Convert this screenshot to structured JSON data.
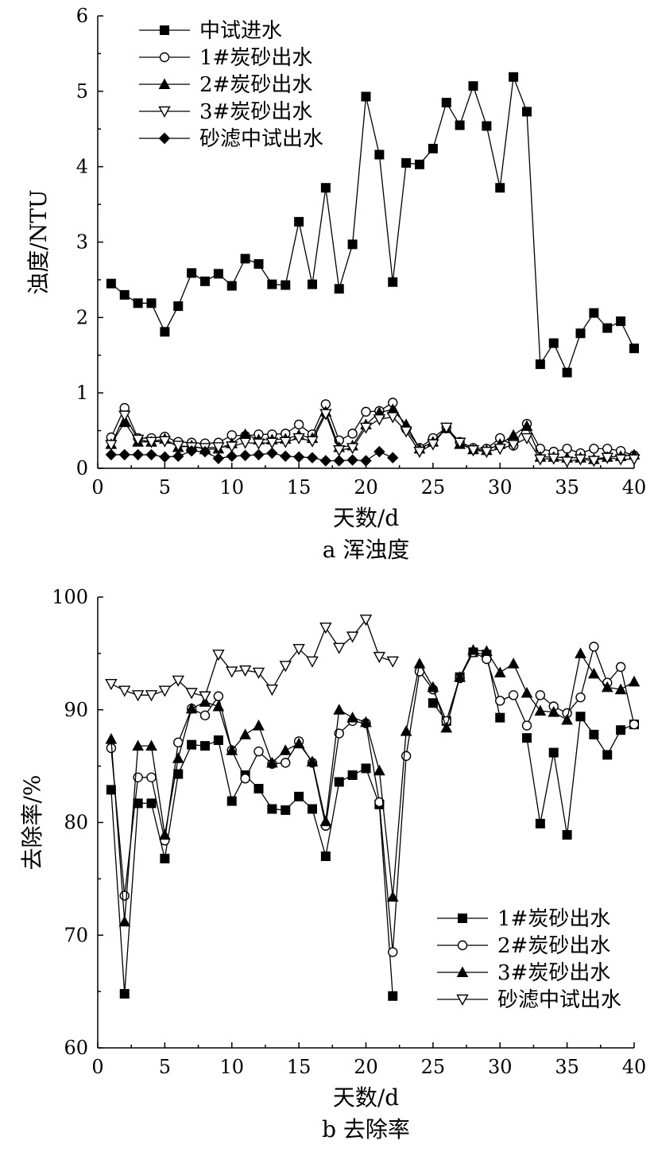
{
  "chart_data": [
    {
      "id": "a",
      "type": "line",
      "caption": "a 浑浊度",
      "xlabel": "天数/d",
      "ylabel": "浊度/NTU",
      "xlim": [
        0,
        40
      ],
      "ylim": [
        0,
        6
      ],
      "xticks": [
        0,
        5,
        10,
        15,
        20,
        25,
        30,
        35,
        40
      ],
      "yticks": [
        0,
        1,
        2,
        3,
        4,
        5,
        6
      ],
      "grid": false,
      "legend_position": "top-left",
      "series": [
        {
          "name": "中试进水",
          "marker": "square-filled",
          "x": [
            1,
            2,
            3,
            4,
            5,
            6,
            7,
            8,
            9,
            10,
            11,
            12,
            13,
            14,
            15,
            16,
            17,
            18,
            19,
            20,
            21,
            22,
            23,
            24,
            25,
            26,
            27,
            28,
            29,
            30,
            31,
            32,
            33,
            34,
            35,
            36,
            37,
            38,
            39,
            40
          ],
          "y": [
            2.45,
            2.3,
            2.19,
            2.19,
            1.81,
            2.15,
            2.59,
            2.48,
            2.58,
            2.42,
            2.78,
            2.71,
            2.44,
            2.43,
            3.27,
            2.44,
            3.72,
            2.38,
            2.97,
            4.93,
            4.16,
            2.47,
            4.05,
            4.03,
            4.24,
            4.85,
            4.55,
            5.07,
            4.54,
            3.72,
            5.19,
            4.73,
            1.38,
            1.66,
            1.27,
            1.79,
            2.06,
            1.86,
            1.95,
            1.59
          ]
        },
        {
          "name": "1#炭砂出水",
          "marker": "circle-open",
          "x": [
            1,
            2,
            3,
            4,
            5,
            6,
            7,
            8,
            9,
            10,
            11,
            12,
            13,
            14,
            15,
            16,
            17,
            18,
            19,
            20,
            21,
            22,
            23,
            24,
            25,
            26,
            27,
            28,
            29,
            30,
            31,
            32,
            33,
            34,
            35,
            36,
            37,
            38,
            39,
            40
          ],
          "y": [
            0.41,
            0.8,
            0.4,
            0.4,
            0.42,
            0.35,
            0.34,
            0.33,
            0.34,
            0.44,
            0.43,
            0.45,
            0.45,
            0.46,
            0.58,
            0.45,
            0.85,
            0.37,
            0.46,
            0.75,
            0.76,
            0.87,
            0.52,
            0.27,
            0.4,
            0.54,
            0.35,
            0.27,
            0.26,
            0.4,
            0.3,
            0.59,
            0.26,
            0.22,
            0.26,
            0.2,
            0.26,
            0.26,
            0.23,
            0.17
          ]
        },
        {
          "name": "2#炭砂出水",
          "marker": "triangle-up-filled",
          "x": [
            1,
            2,
            3,
            4,
            5,
            6,
            7,
            8,
            9,
            10,
            11,
            12,
            13,
            14,
            15,
            16,
            17,
            18,
            19,
            20,
            21,
            22,
            23,
            24,
            25,
            26,
            27,
            28,
            29,
            30,
            31,
            32,
            33,
            34,
            35,
            36,
            37,
            38,
            39,
            40
          ],
          "y": [
            0.32,
            0.61,
            0.35,
            0.35,
            0.39,
            0.28,
            0.3,
            0.25,
            0.26,
            0.33,
            0.45,
            0.38,
            0.38,
            0.39,
            0.44,
            0.4,
            0.75,
            0.28,
            0.3,
            0.58,
            0.74,
            0.78,
            0.58,
            0.26,
            0.35,
            0.53,
            0.32,
            0.25,
            0.24,
            0.32,
            0.44,
            0.56,
            0.15,
            0.15,
            0.14,
            0.14,
            0.12,
            0.15,
            0.16,
            0.18
          ]
        },
        {
          "name": "3#炭砂出水",
          "marker": "triangle-down-open",
          "x": [
            1,
            2,
            3,
            4,
            5,
            6,
            7,
            8,
            9,
            10,
            11,
            12,
            13,
            14,
            15,
            16,
            17,
            18,
            19,
            20,
            21,
            22,
            23,
            24,
            25,
            26,
            27,
            28,
            29,
            30,
            31,
            32,
            33,
            34,
            35,
            36,
            37,
            38,
            39,
            40
          ],
          "y": [
            0.31,
            0.7,
            0.38,
            0.35,
            0.36,
            0.3,
            0.28,
            0.27,
            0.28,
            0.29,
            0.34,
            0.33,
            0.34,
            0.35,
            0.4,
            0.36,
            0.72,
            0.24,
            0.27,
            0.54,
            0.65,
            0.68,
            0.49,
            0.22,
            0.32,
            0.54,
            0.34,
            0.24,
            0.22,
            0.26,
            0.31,
            0.4,
            0.12,
            0.13,
            0.09,
            0.12,
            0.1,
            0.14,
            0.12,
            0.12
          ]
        },
        {
          "name": "砂滤中试出水",
          "marker": "diamond-filled",
          "x": [
            1,
            2,
            3,
            4,
            5,
            6,
            7,
            8,
            9,
            10,
            11,
            12,
            13,
            14,
            15,
            16,
            17,
            18,
            19,
            20,
            21,
            22
          ],
          "y": [
            0.18,
            0.18,
            0.18,
            0.18,
            0.15,
            0.16,
            0.23,
            0.22,
            0.13,
            0.16,
            0.17,
            0.18,
            0.2,
            0.16,
            0.15,
            0.14,
            0.1,
            0.1,
            0.11,
            0.1,
            0.22,
            0.14
          ]
        }
      ]
    },
    {
      "id": "b",
      "type": "line",
      "caption": "b 去除率",
      "xlabel": "天数/d",
      "ylabel": "去除率/%",
      "xlim": [
        0,
        40
      ],
      "ylim": [
        60,
        100
      ],
      "xticks": [
        0,
        5,
        10,
        15,
        20,
        25,
        30,
        35,
        40
      ],
      "yticks": [
        60,
        70,
        80,
        90,
        100
      ],
      "grid": false,
      "legend_position": "bottom-right",
      "series": [
        {
          "name": "1#炭砂出水",
          "marker": "square-filled",
          "x": [
            1,
            2,
            3,
            4,
            5,
            6,
            7,
            8,
            9,
            10,
            11,
            12,
            13,
            14,
            15,
            16,
            17,
            18,
            19,
            20,
            21,
            22,
            25,
            26,
            27,
            28,
            29,
            30,
            32,
            33,
            34,
            35,
            36,
            37,
            38,
            39,
            40
          ],
          "y": [
            82.9,
            64.8,
            81.7,
            81.7,
            76.8,
            84.3,
            86.9,
            86.8,
            87.3,
            81.9,
            84.2,
            83.0,
            81.2,
            81.1,
            82.3,
            81.2,
            77.0,
            83.6,
            84.2,
            84.8,
            81.6,
            64.6,
            90.6,
            89.0,
            92.9,
            95.1,
            94.9,
            89.3,
            87.5,
            79.9,
            86.2,
            78.9,
            89.4,
            87.8,
            86.0,
            88.2,
            88.7
          ]
        },
        {
          "name": "2#炭砂出水",
          "marker": "circle-open",
          "x": [
            1,
            2,
            3,
            4,
            5,
            6,
            7,
            8,
            9,
            10,
            11,
            12,
            13,
            14,
            15,
            16,
            17,
            18,
            19,
            20,
            21,
            22,
            23,
            24,
            25,
            26,
            27,
            28,
            29,
            30,
            31,
            32,
            33,
            34,
            35,
            36,
            37,
            38,
            39,
            40
          ],
          "y": [
            86.6,
            73.5,
            84.0,
            84.0,
            78.4,
            87.1,
            90.1,
            89.5,
            91.2,
            86.4,
            83.9,
            86.3,
            85.2,
            85.3,
            87.2,
            85.3,
            79.7,
            87.9,
            89.0,
            88.8,
            81.8,
            68.5,
            85.9,
            93.4,
            91.8,
            89.0,
            92.8,
            95.1,
            94.5,
            90.8,
            91.3,
            88.6,
            91.3,
            90.3,
            89.7,
            91.1,
            95.6,
            92.4,
            93.8,
            88.7
          ]
        },
        {
          "name": "3#炭砂出水",
          "marker": "triangle-up-filled",
          "x": [
            1,
            2,
            3,
            4,
            5,
            6,
            7,
            8,
            9,
            10,
            11,
            12,
            13,
            14,
            15,
            16,
            17,
            18,
            19,
            20,
            21,
            22,
            23,
            24,
            25,
            26,
            27,
            28,
            29,
            30,
            31,
            32,
            33,
            34,
            35,
            36,
            37,
            38,
            39,
            40
          ],
          "y": [
            87.4,
            71.2,
            86.8,
            86.8,
            78.9,
            85.7,
            90.1,
            90.7,
            90.3,
            86.4,
            87.8,
            88.6,
            85.3,
            86.4,
            87.0,
            85.4,
            80.1,
            90.0,
            89.3,
            88.9,
            84.6,
            73.4,
            88.1,
            94.1,
            92.0,
            88.4,
            92.9,
            95.3,
            95.2,
            93.3,
            94.1,
            91.5,
            89.9,
            89.8,
            89.1,
            95.0,
            93.2,
            92.0,
            91.8,
            92.5
          ]
        }
      ],
      "extra_series": [
        {
          "name": "砂滤中试出水",
          "marker": "triangle-down-open",
          "x": [
            1,
            2,
            3,
            4,
            5,
            6,
            7,
            8,
            9,
            10,
            11,
            12,
            13,
            14,
            15,
            16,
            17,
            18,
            19,
            20,
            21,
            22
          ],
          "y": [
            92.3,
            91.7,
            91.3,
            91.3,
            91.7,
            92.6,
            91.5,
            91.2,
            94.9,
            93.4,
            93.5,
            93.3,
            91.8,
            93.9,
            95.4,
            94.3,
            97.3,
            95.5,
            96.5,
            98.0,
            94.7,
            94.3
          ]
        }
      ]
    }
  ]
}
